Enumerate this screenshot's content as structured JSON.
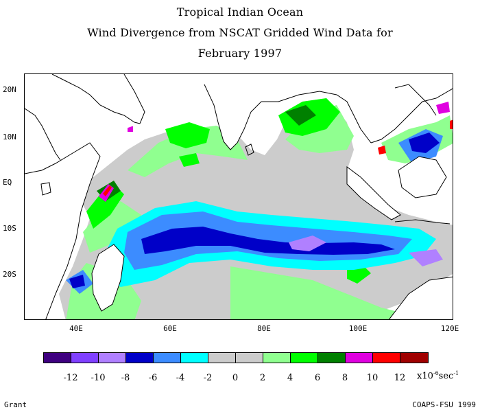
{
  "titles": {
    "line1": "Tropical Indian Ocean",
    "line2": "Wind Divergence from NSCAT Gridded Wind Data for",
    "line3": "February 1997"
  },
  "latitude_labels": [
    "20N",
    "10N",
    "EQ",
    "10S",
    "20S"
  ],
  "longitude_labels": [
    "40E",
    "60E",
    "80E",
    "100E",
    "120E"
  ],
  "colorbar": {
    "colors": [
      "#3f0080",
      "#8040ff",
      "#b080ff",
      "#0000c8",
      "#3c8cff",
      "#00ffff",
      "#cccccc",
      "#cccccc",
      "#90ff90",
      "#00ff00",
      "#008000",
      "#e000e0",
      "#ff0000",
      "#a00000"
    ],
    "tick_labels": [
      "-12",
      "-10",
      "-8",
      "-6",
      "-4",
      "-2",
      "0",
      "2",
      "4",
      "6",
      "8",
      "10",
      "12"
    ],
    "unit_prefix": "x10",
    "unit_exp1": "-6",
    "unit_mid": "sec",
    "unit_exp2": "-1"
  },
  "footer": {
    "left": "Grant",
    "right": "COAPS-FSU 1999"
  },
  "map_colors": {
    "land": "#ffffff",
    "coast": "#000000",
    "neutral": "#cccccc",
    "light_green": "#90ff90",
    "green": "#00ff00",
    "dark_green": "#008000",
    "cyan": "#00ffff",
    "light_blue": "#3c8cff",
    "blue": "#0000c8",
    "lavender": "#b080ff",
    "magenta": "#e000e0",
    "red": "#ff0000"
  }
}
